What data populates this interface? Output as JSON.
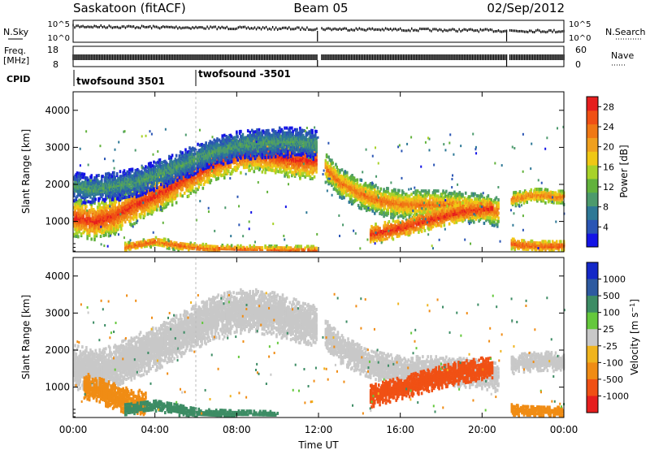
{
  "header": {
    "site": "Saskatoon (fitACF)",
    "beam": "Beam 05",
    "date": "02/Sep/2012"
  },
  "top_panels": {
    "nsky_label": "N.Sky",
    "nsearch_label": "N.Search",
    "freq_label_1": "Freq.",
    "freq_label_2": "[MHz]",
    "nave_label": "Nave",
    "cpid_label": "CPID",
    "noise_ticks_left": [
      "10^5",
      "10^0"
    ],
    "noise_ticks_right": [
      "10^5",
      "10^0"
    ],
    "freq_ticks": [
      "18",
      "8"
    ],
    "nave_ticks": [
      "60",
      "0"
    ],
    "cpid_segments": [
      {
        "label": "twofsound 3501",
        "start_hour": 0
      },
      {
        "label": "twofsound -3501",
        "start_hour": 6.0
      }
    ],
    "data_gaps_hours": [
      [
        11.95,
        12.15
      ],
      [
        21.2,
        21.35
      ]
    ]
  },
  "chart_data": [
    {
      "type": "heatmap",
      "title": "",
      "xlabel": "",
      "ylabel": "Slant Range [km]",
      "x_ticks": [
        "00:00",
        "04:00",
        "08:00",
        "12:00",
        "16:00",
        "20:00",
        "00:00"
      ],
      "y_ticks": [
        1000,
        2000,
        3000,
        4000
      ],
      "xlim_hours": [
        0,
        24
      ],
      "ylim_km": [
        180,
        4500
      ],
      "colorbar": {
        "label": "Power [dB]",
        "ticks": [
          4,
          8,
          12,
          16,
          20,
          24,
          28
        ],
        "range": [
          0,
          30
        ],
        "colors": [
          "#1414e6",
          "#2a55b4",
          "#2e7896",
          "#4c9a6c",
          "#62b23c",
          "#a8d228",
          "#f0c814",
          "#f0a01e",
          "#f07814",
          "#f05014",
          "#e61e1e"
        ]
      },
      "bands": [
        {
          "h": [
            0.0,
            1.0,
            2.0,
            3.0,
            4.0,
            5.0,
            6.0,
            7.0,
            8.0,
            9.0,
            10.0,
            11.0,
            11.9
          ],
          "r": [
            1150,
            1050,
            1200,
            1500,
            1750,
            2050,
            2350,
            2650,
            2850,
            2900,
            2800,
            2700,
            2700
          ],
          "w": 500,
          "pmin": 14,
          "pmax": 30
        },
        {
          "h": [
            0.0,
            1.0,
            2.0,
            3.0,
            4.0,
            5.0,
            6.0,
            7.0,
            8.0,
            9.0,
            10.0,
            11.0,
            11.9
          ],
          "r": [
            2000,
            1900,
            2000,
            2100,
            2300,
            2500,
            2750,
            2950,
            3100,
            3150,
            3200,
            3200,
            3100
          ],
          "w": 400,
          "pmin": 3,
          "pmax": 12
        },
        {
          "h": [
            12.3,
            13.0,
            14.0,
            15.0,
            16.0,
            17.0,
            18.0,
            19.0,
            20.0,
            20.8
          ],
          "r": [
            2500,
            2100,
            1800,
            1600,
            1500,
            1500,
            1500,
            1450,
            1400,
            1300
          ],
          "w": 400,
          "pmin": 10,
          "pmax": 26
        },
        {
          "h": [
            14.5,
            15.5,
            16.5,
            17.5,
            18.5,
            19.5,
            20.5
          ],
          "r": [
            700,
            800,
            950,
            1100,
            1250,
            1350,
            1400
          ],
          "w": 250,
          "pmin": 18,
          "pmax": 30
        },
        {
          "h": [
            2.5,
            4.0,
            5.0,
            6.0,
            7.0,
            8.0,
            10.0,
            11.9
          ],
          "r": [
            350,
            500,
            400,
            330,
            300,
            280,
            270,
            260
          ],
          "w": 120,
          "pmin": 14,
          "pmax": 28
        },
        {
          "h": [
            21.4,
            22.0,
            22.5,
            23.0,
            23.5,
            24.0
          ],
          "r": [
            1650,
            1700,
            1750,
            1750,
            1700,
            1700
          ],
          "w": 200,
          "pmin": 12,
          "pmax": 26
        },
        {
          "h": [
            21.4,
            22.0,
            23.0,
            24.0
          ],
          "r": [
            450,
            400,
            380,
            380
          ],
          "w": 150,
          "pmin": 16,
          "pmax": 28
        }
      ]
    },
    {
      "type": "heatmap",
      "title": "",
      "xlabel": "Time UT",
      "ylabel": "Slant Range [km]",
      "x_ticks": [
        "00:00",
        "04:00",
        "08:00",
        "12:00",
        "16:00",
        "20:00",
        "00:00"
      ],
      "y_ticks": [
        1000,
        2000,
        3000,
        4000
      ],
      "xlim_hours": [
        0,
        24
      ],
      "ylim_km": [
        180,
        4500
      ],
      "colorbar": {
        "label": "Velocity [m s^-1]",
        "ticks": [
          "1000",
          "500",
          "100",
          "25",
          "-25",
          "-100",
          "-500",
          "-1000"
        ],
        "colors": [
          "#1428c8",
          "#2d5aa0",
          "#3c8c64",
          "#64c83c",
          "#c8c8c8",
          "#f0b41e",
          "#f08c14",
          "#f05014",
          "#e61e1e"
        ]
      },
      "bands": [
        {
          "h": [
            0.0,
            1.0,
            2.0,
            3.0,
            4.0,
            5.0,
            6.0,
            7.0,
            8.0,
            9.0,
            10.0,
            11.0,
            11.9
          ],
          "r": [
            1600,
            1500,
            1600,
            1900,
            2100,
            2400,
            2700,
            2950,
            3100,
            3100,
            3000,
            2800,
            2700
          ],
          "w": 600,
          "vmin": -25,
          "vmax": 25
        },
        {
          "h": [
            0.5,
            1.5,
            2.5,
            3.5
          ],
          "r": [
            1100,
            900,
            700,
            600
          ],
          "w": 350,
          "vmin": -500,
          "vmax": -100
        },
        {
          "h": [
            2.5,
            4.0,
            5.0,
            6.0,
            7.0,
            8.0,
            9.0,
            10.0
          ],
          "r": [
            450,
            550,
            450,
            330,
            300,
            280,
            270,
            260
          ],
          "w": 150,
          "vmin": 100,
          "vmax": 500
        },
        {
          "h": [
            12.3,
            13.0,
            14.0,
            15.0,
            16.0,
            17.0,
            18.0,
            19.0,
            20.0,
            20.8
          ],
          "r": [
            2500,
            2100,
            1800,
            1600,
            1500,
            1500,
            1500,
            1450,
            1400,
            1300
          ],
          "w": 400,
          "vmin": -25,
          "vmax": 25
        },
        {
          "h": [
            14.5,
            15.5,
            16.5,
            17.5,
            18.5,
            19.5,
            20.5
          ],
          "r": [
            800,
            950,
            1100,
            1250,
            1400,
            1500,
            1600
          ],
          "w": 300,
          "vmin": -1000,
          "vmax": -500
        },
        {
          "h": [
            21.4,
            22.0,
            23.0,
            24.0
          ],
          "r": [
            1650,
            1700,
            1750,
            1700
          ],
          "w": 250,
          "vmin": -25,
          "vmax": 25
        },
        {
          "h": [
            21.4,
            22.0,
            23.0,
            24.0
          ],
          "r": [
            450,
            400,
            380,
            380
          ],
          "w": 150,
          "vmin": -500,
          "vmax": -100
        }
      ]
    }
  ]
}
